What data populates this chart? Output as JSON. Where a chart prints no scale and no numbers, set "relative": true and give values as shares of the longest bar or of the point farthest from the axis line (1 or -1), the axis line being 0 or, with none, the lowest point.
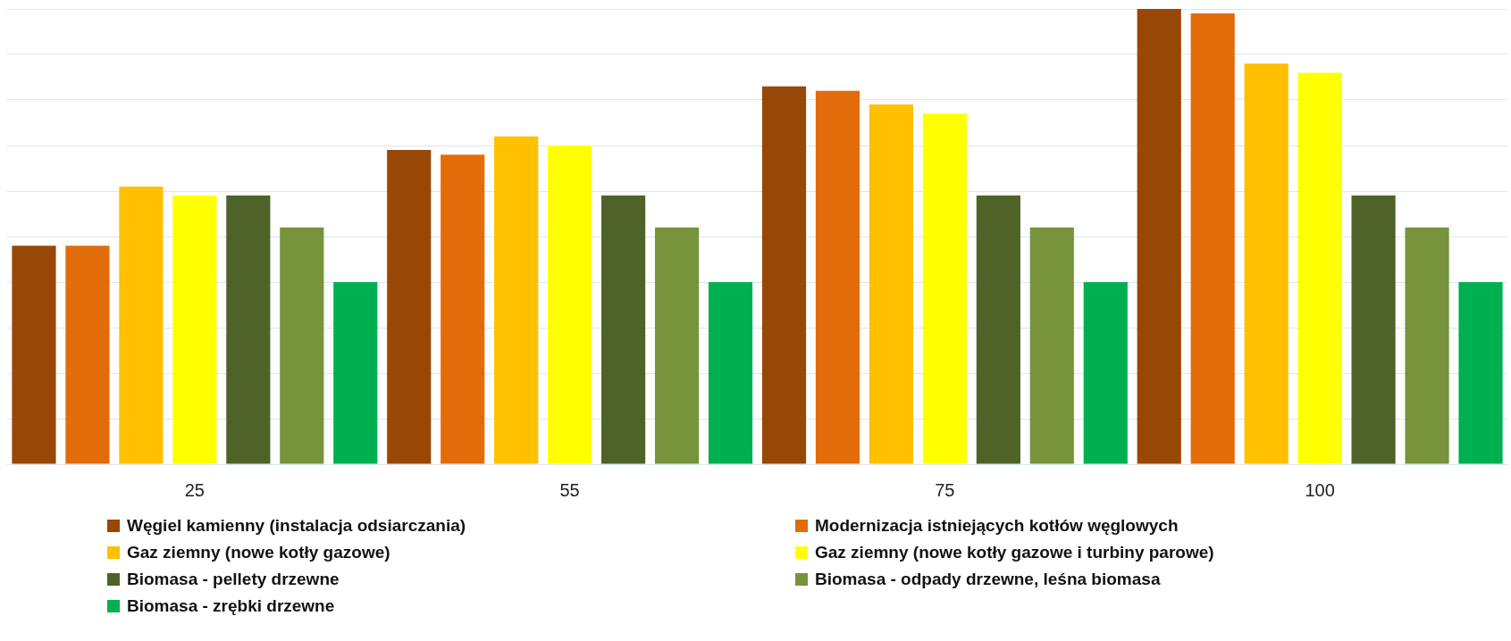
{
  "chart_data": {
    "type": "bar",
    "relative": true,
    "grid": "y",
    "legend": "bottom",
    "categories": [
      "25",
      "55",
      "75",
      "100"
    ],
    "series": [
      {
        "name": "Węgiel kamienny (instalacja odsiarczania)",
        "color": "#994706",
        "values": [
          0.48,
          0.69,
          0.83,
          1
        ]
      },
      {
        "name": "Modernizacja istniejących kotłów węglowych",
        "color": "#e36c0a",
        "values": [
          0.48,
          0.68,
          0.82,
          0.99
        ]
      },
      {
        "name": "Gaz ziemny (nowe kotły gazowe)",
        "color": "#ffc000",
        "values": [
          0.61,
          0.72,
          0.79,
          0.88
        ]
      },
      {
        "name": "Gaz ziemny (nowe kotły gazowe i turbiny parowe)",
        "color": "#ffff00",
        "values": [
          0.59,
          0.7,
          0.77,
          0.86
        ]
      },
      {
        "name": "Biomasa - pellety drzewne",
        "color": "#4f6228",
        "values": [
          0.59,
          0.59,
          0.59,
          0.59
        ]
      },
      {
        "name": "Biomasa - odpady drzewne, leśna biomasa",
        "color": "#77933c",
        "values": [
          0.52,
          0.52,
          0.52,
          0.52
        ]
      },
      {
        "name": "Biomasa - zrębki drzewne",
        "color": "#00b050",
        "values": [
          0.4,
          0.4,
          0.4,
          0.4
        ]
      }
    ]
  }
}
